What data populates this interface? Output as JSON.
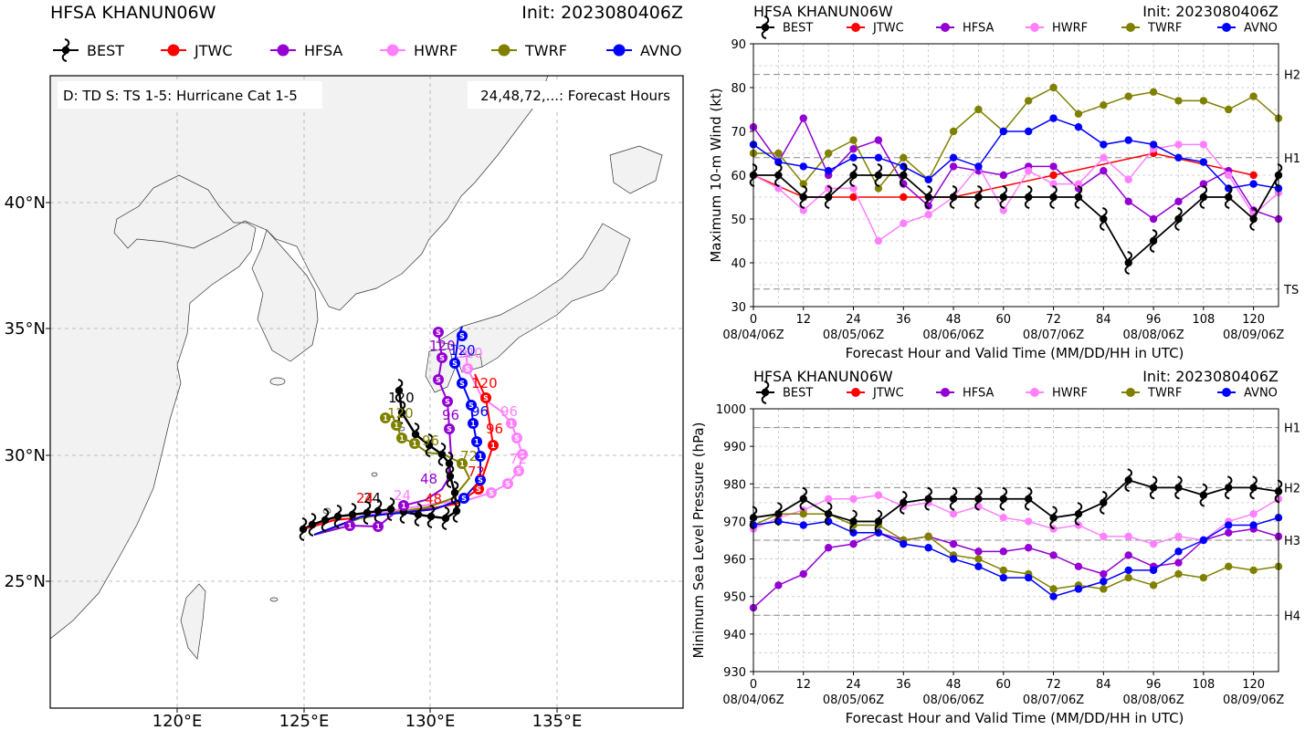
{
  "colors": {
    "BEST": "#000000",
    "JTWC": "#ff0000",
    "HFSA": "#9400d3",
    "HWRF": "#ff80ff",
    "TWRF": "#808000",
    "AVNO": "#0000ff",
    "land": "#f2f2f2",
    "water": "#ffffff",
    "grid": "#aaaaaa"
  },
  "map": {
    "title_left": "HFSA KHANUN06W",
    "title_right": "Init: 2023080406Z",
    "legend": [
      "BEST",
      "JTWC",
      "HFSA",
      "HWRF",
      "TWRF",
      "AVNO"
    ],
    "info_left": "D: TD  S: TS  1-5: Hurricane Cat 1-5",
    "info_right": "24,48,72,...: Forecast Hours",
    "lat_labels": [
      "40°N",
      "35°N",
      "30°N",
      "25°N"
    ],
    "lon_labels": [
      "120°E",
      "125°E",
      "130°E",
      "135°E"
    ]
  },
  "chart_data": [
    {
      "type": "line",
      "title": "HFSA KHANUN06W",
      "subtitle": "Init: 2023080406Z",
      "xlabel": "Forecast Hour and Valid Time (MM/DD/HH in UTC)",
      "ylabel": "Maximum 10-m Wind (kt)",
      "xlim": [
        0,
        126
      ],
      "ylim": [
        30,
        90
      ],
      "xticks": [
        "0",
        "12",
        "24",
        "36",
        "48",
        "60",
        "72",
        "84",
        "96",
        "108",
        "120"
      ],
      "yticks": [
        "30",
        "40",
        "50",
        "60",
        "70",
        "80",
        "90"
      ],
      "date_labels": [
        "08/04/06Z",
        "08/05/06Z",
        "08/06/06Z",
        "08/07/06Z",
        "08/08/06Z",
        "08/09/06Z"
      ],
      "ref_lines": [
        {
          "label": "H2",
          "value": 83
        },
        {
          "label": "H1",
          "value": 64
        },
        {
          "label": "TS",
          "value": 34
        }
      ],
      "legend": [
        "BEST",
        "JTWC",
        "HFSA",
        "HWRF",
        "TWRF",
        "AVNO"
      ],
      "series": [
        {
          "name": "BEST",
          "x": [
            0,
            6,
            12,
            18,
            24,
            30,
            36,
            42,
            48,
            54,
            60,
            66,
            72,
            78,
            84,
            90,
            96,
            102,
            108,
            114,
            120,
            126
          ],
          "values": [
            60,
            60,
            55,
            55,
            60,
            60,
            60,
            55,
            55,
            55,
            55,
            55,
            55,
            55,
            50,
            40,
            45,
            50,
            55,
            55,
            50,
            60
          ]
        },
        {
          "name": "JTWC",
          "x": [
            0,
            12,
            24,
            36,
            48,
            72,
            96,
            120
          ],
          "values": [
            60,
            55,
            55,
            55,
            55,
            60,
            65,
            60
          ]
        },
        {
          "name": "HFSA",
          "x": [
            0,
            6,
            12,
            18,
            24,
            30,
            36,
            42,
            48,
            54,
            60,
            66,
            72,
            78,
            84,
            90,
            96,
            102,
            108,
            114,
            120,
            126
          ],
          "values": [
            71,
            63,
            73,
            60,
            66,
            68,
            58,
            53,
            62,
            61,
            60,
            62,
            62,
            57,
            61,
            54,
            50,
            54,
            58,
            61,
            52,
            50
          ]
        },
        {
          "name": "HWRF",
          "x": [
            0,
            6,
            12,
            18,
            24,
            30,
            36,
            42,
            48,
            54,
            60,
            66,
            72,
            78,
            84,
            90,
            96,
            102,
            108,
            114,
            120,
            126
          ],
          "values": [
            60,
            57,
            52,
            57,
            57,
            45,
            49,
            51,
            55,
            62,
            52,
            61,
            58,
            58,
            64,
            59,
            66,
            67,
            67,
            60,
            51,
            56
          ]
        },
        {
          "name": "TWRF",
          "x": [
            0,
            6,
            12,
            18,
            24,
            30,
            36,
            42,
            48,
            54,
            60,
            66,
            72,
            78,
            84,
            90,
            96,
            102,
            108,
            114,
            120,
            126
          ],
          "values": [
            65,
            65,
            58,
            65,
            68,
            57,
            64,
            59,
            70,
            75,
            70,
            77,
            80,
            74,
            76,
            78,
            79,
            77,
            77,
            75,
            78,
            73
          ]
        },
        {
          "name": "AVNO",
          "x": [
            0,
            6,
            12,
            18,
            24,
            30,
            36,
            42,
            48,
            54,
            60,
            66,
            72,
            78,
            84,
            90,
            96,
            102,
            108,
            114,
            120,
            126
          ],
          "values": [
            67,
            63,
            62,
            61,
            64,
            64,
            62,
            59,
            64,
            62,
            70,
            70,
            73,
            71,
            67,
            68,
            67,
            64,
            63,
            57,
            58,
            57
          ]
        }
      ]
    },
    {
      "type": "line",
      "title": "HFSA KHANUN06W",
      "subtitle": "Init: 2023080406Z",
      "xlabel": "Forecast Hour and Valid Time (MM/DD/HH in UTC)",
      "ylabel": "Minimum Sea Level Pressure (hPa)",
      "xlim": [
        0,
        126
      ],
      "ylim": [
        930,
        1000
      ],
      "xticks": [
        "0",
        "12",
        "24",
        "36",
        "48",
        "60",
        "72",
        "84",
        "96",
        "108",
        "120"
      ],
      "yticks": [
        "930",
        "940",
        "950",
        "960",
        "970",
        "980",
        "990",
        "1000"
      ],
      "date_labels": [
        "08/04/06Z",
        "08/05/06Z",
        "08/06/06Z",
        "08/07/06Z",
        "08/08/06Z",
        "08/09/06Z"
      ],
      "ref_lines": [
        {
          "label": "H1",
          "value": 995
        },
        {
          "label": "H2",
          "value": 979
        },
        {
          "label": "H3",
          "value": 965
        },
        {
          "label": "H4",
          "value": 945
        }
      ],
      "legend": [
        "BEST",
        "JTWC",
        "HFSA",
        "HWRF",
        "TWRF",
        "AVNO"
      ],
      "series": [
        {
          "name": "BEST",
          "x": [
            0,
            6,
            12,
            18,
            24,
            30,
            36,
            42,
            48,
            54,
            60,
            66,
            72,
            78,
            84,
            90,
            96,
            102,
            108,
            114,
            120,
            126
          ],
          "values": [
            971,
            972,
            976,
            972,
            970,
            970,
            975,
            976,
            976,
            976,
            976,
            976,
            971,
            972,
            975,
            981,
            979,
            979,
            977,
            979,
            979,
            978
          ]
        },
        {
          "name": "HFSA",
          "x": [
            0,
            6,
            12,
            18,
            24,
            30,
            36,
            42,
            48,
            54,
            60,
            66,
            72,
            78,
            84,
            90,
            96,
            102,
            108,
            114,
            120,
            126
          ],
          "values": [
            947,
            953,
            956,
            963,
            964,
            967,
            965,
            966,
            964,
            962,
            962,
            963,
            961,
            958,
            956,
            961,
            958,
            959,
            965,
            967,
            968,
            966
          ]
        },
        {
          "name": "HWRF",
          "x": [
            0,
            6,
            12,
            18,
            24,
            30,
            36,
            42,
            48,
            54,
            60,
            66,
            72,
            78,
            84,
            90,
            96,
            102,
            108,
            114,
            120,
            126
          ],
          "values": [
            968,
            971,
            973,
            976,
            976,
            977,
            974,
            975,
            972,
            974,
            971,
            970,
            968,
            969,
            966,
            966,
            964,
            966,
            965,
            970,
            972,
            976
          ]
        },
        {
          "name": "TWRF",
          "x": [
            0,
            6,
            12,
            18,
            24,
            30,
            36,
            42,
            48,
            54,
            60,
            66,
            72,
            78,
            84,
            90,
            96,
            102,
            108,
            114,
            120,
            126
          ],
          "values": [
            969,
            972,
            972,
            972,
            969,
            969,
            965,
            966,
            961,
            960,
            957,
            956,
            952,
            953,
            952,
            955,
            953,
            956,
            955,
            958,
            957,
            958
          ]
        },
        {
          "name": "AVNO",
          "x": [
            0,
            6,
            12,
            18,
            24,
            30,
            36,
            42,
            48,
            54,
            60,
            66,
            72,
            78,
            84,
            90,
            96,
            102,
            108,
            114,
            120,
            126
          ],
          "values": [
            969,
            970,
            969,
            970,
            967,
            967,
            964,
            963,
            960,
            958,
            955,
            955,
            950,
            952,
            954,
            957,
            957,
            962,
            965,
            969,
            969,
            971
          ]
        }
      ]
    }
  ]
}
